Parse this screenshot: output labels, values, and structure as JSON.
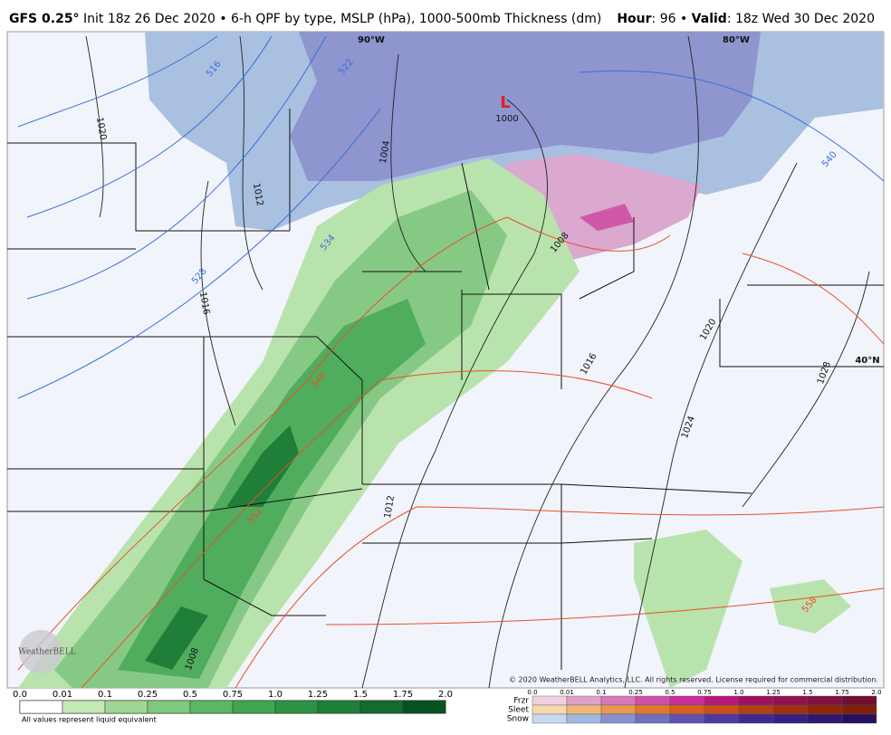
{
  "header": {
    "model": "GFS 0.25°",
    "description": "Init 18z 26 Dec 2020 • 6-h QPF by type, MSLP (hPa), 1000-500mb Thickness (dm)",
    "hour_label": "Hour",
    "hour": ": 96 • ",
    "valid_label": "Valid",
    "valid": ": 18z Wed 30 Dec 2020"
  },
  "map": {
    "low_marker": "L",
    "grid_labels": [
      "90°W",
      "80°W",
      "40°N"
    ],
    "pressure_labels": [
      "1000",
      "1020",
      "1012",
      "1004",
      "1016",
      "1008",
      "1016",
      "1020",
      "1028",
      "1024",
      "1012",
      "1008"
    ],
    "thickness_labels": [
      "516",
      "522",
      "528",
      "534",
      "540",
      "546",
      "552",
      "558"
    ],
    "copyright": "© 2020 WeatherBELL Analytics, LLC. All rights reserved. License required for commercial distribution.",
    "logo": "WeatherBELL"
  },
  "legend": {
    "rain_ticks": [
      "0.0",
      "0.01",
      "0.1",
      "0.25",
      "0.5",
      "0.75",
      "1.0",
      "1.25",
      "1.5",
      "1.75",
      "2.0"
    ],
    "note": "All values represent liquid equivalent",
    "type_names": [
      "Frzr",
      "Sleet",
      "Snow"
    ],
    "type_ticks": [
      "0.0",
      "0.01",
      "0.1",
      "0.25",
      "0.5",
      "0.75",
      "1.0",
      "1.25",
      "1.5",
      "1.75",
      "2.0"
    ]
  }
}
